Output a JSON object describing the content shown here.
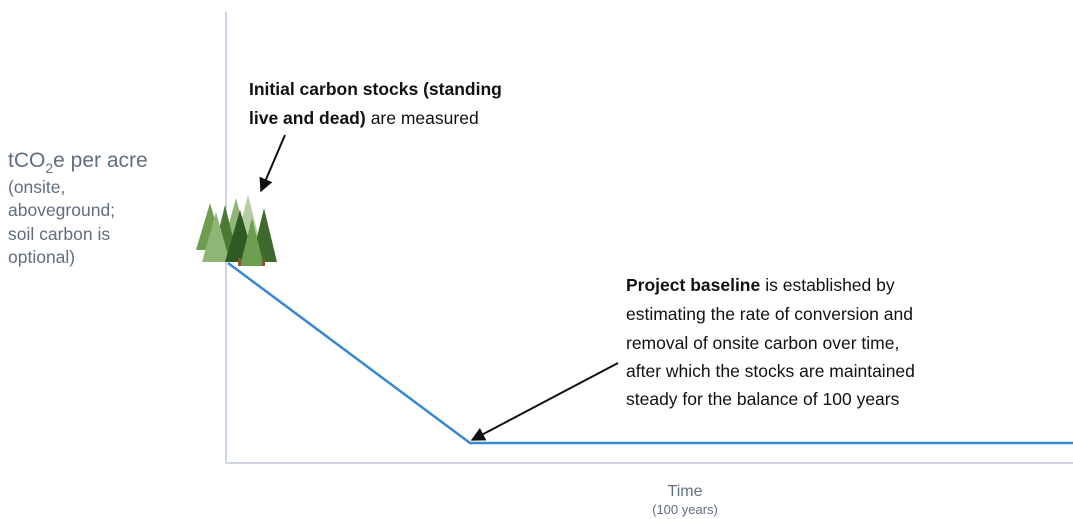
{
  "y_axis": {
    "label_main": "tCO",
    "label_sub": "2",
    "label_end": "e per acre",
    "note_lines": [
      "(onsite,",
      "aboveground;",
      "soil carbon is",
      "optional)"
    ]
  },
  "x_axis": {
    "label": "Time",
    "note": "(100 years)"
  },
  "annotations": [
    {
      "bold_lines": [
        "Initial carbon stocks (standing",
        "live and dead)"
      ],
      "rest": "are measured"
    },
    {
      "bold": "Project baseline",
      "rest": "is established by",
      "lines": [
        "estimating the rate of conversion and",
        "removal of onsite carbon over time,",
        "after which the stocks are maintained",
        "steady for the balance of 100 years"
      ]
    }
  ]
}
